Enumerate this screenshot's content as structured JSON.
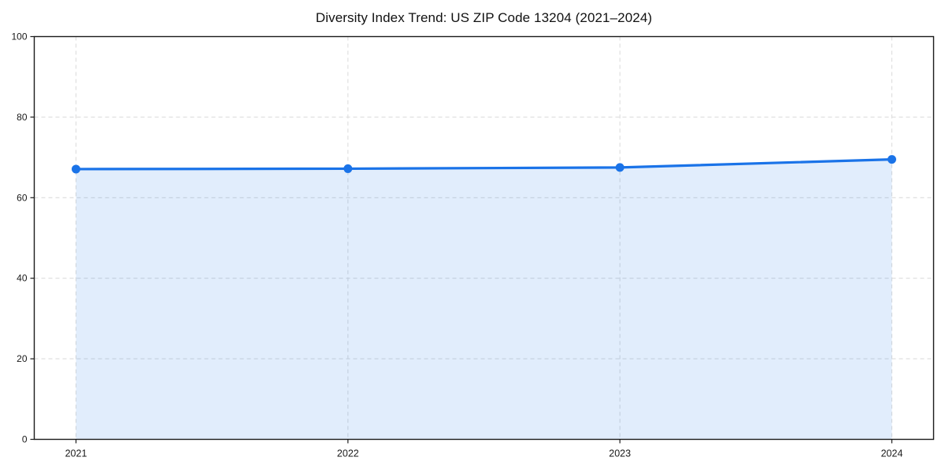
{
  "figure": {
    "title": "Diversity Index Trend: US ZIP Code 13204 (2021–2024)"
  },
  "chart_data": {
    "type": "line",
    "title": "Diversity Index Trend: US ZIP Code 13204 (2021–2024)",
    "categories": [
      "2021",
      "2022",
      "2023",
      "2024"
    ],
    "values": [
      67.1,
      67.2,
      67.5,
      69.5
    ],
    "xlabel": "",
    "ylabel": "",
    "ylim": [
      0,
      100
    ],
    "yticks": [
      0,
      20,
      40,
      60,
      80,
      100
    ],
    "grid": true,
    "grid_style": "dashed",
    "legend": false,
    "area_fill": true,
    "marker": "circle",
    "colors": {
      "line": "#1a73e8",
      "marker": "#1a73e8",
      "fill": "rgba(26,115,232,0.13)",
      "grid": "#dcdcdc",
      "frame": "#1a1a1a",
      "tick_text": "#1a1a1a",
      "title_text": "#111111",
      "background": "#ffffff"
    }
  }
}
